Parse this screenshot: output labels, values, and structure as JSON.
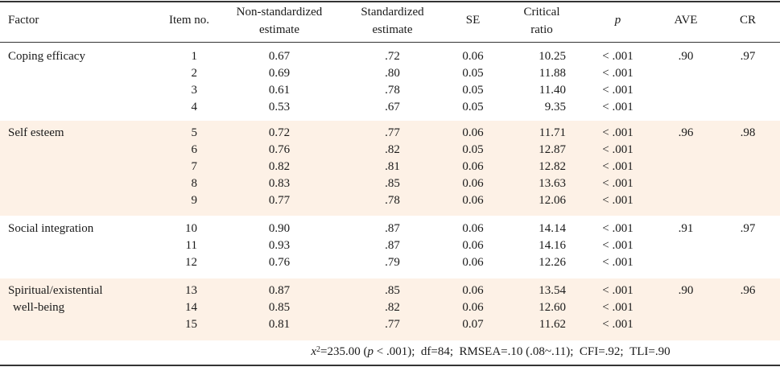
{
  "headers": {
    "factor": "Factor",
    "item_no": "Item no.",
    "nonstd_line1": "Non-standardized",
    "nonstd_line2": "estimate",
    "std_line1": "Standardized",
    "std_line2": "estimate",
    "se": "SE",
    "cr_line1": "Critical",
    "cr_line2": "ratio",
    "p": "p",
    "ave": "AVE",
    "cr": "CR"
  },
  "groups": [
    {
      "factor_lines": [
        "Coping efficacy"
      ],
      "ave": ".90",
      "cr": ".97",
      "rows": [
        {
          "item": "1",
          "nonstd": "0.67",
          "std": ".72",
          "se": "0.06",
          "critical": "10.25",
          "p": "< .001"
        },
        {
          "item": "2",
          "nonstd": "0.69",
          "std": ".80",
          "se": "0.05",
          "critical": "11.88",
          "p": "< .001"
        },
        {
          "item": "3",
          "nonstd": "0.61",
          "std": ".78",
          "se": "0.05",
          "critical": "11.40",
          "p": "< .001"
        },
        {
          "item": "4",
          "nonstd": "0.53",
          "std": ".67",
          "se": "0.05",
          "critical": "9.35",
          "p": "< .001"
        }
      ]
    },
    {
      "factor_lines": [
        "Self esteem"
      ],
      "ave": ".96",
      "cr": ".98",
      "rows": [
        {
          "item": "5",
          "nonstd": "0.72",
          "std": ".77",
          "se": "0.06",
          "critical": "11.71",
          "p": "< .001"
        },
        {
          "item": "6",
          "nonstd": "0.76",
          "std": ".82",
          "se": "0.05",
          "critical": "12.87",
          "p": "< .001"
        },
        {
          "item": "7",
          "nonstd": "0.82",
          "std": ".81",
          "se": "0.06",
          "critical": "12.82",
          "p": "< .001"
        },
        {
          "item": "8",
          "nonstd": "0.83",
          "std": ".85",
          "se": "0.06",
          "critical": "13.63",
          "p": "< .001"
        },
        {
          "item": "9",
          "nonstd": "0.77",
          "std": ".78",
          "se": "0.06",
          "critical": "12.06",
          "p": "< .001"
        }
      ]
    },
    {
      "factor_lines": [
        "Social integration"
      ],
      "ave": ".91",
      "cr": ".97",
      "rows": [
        {
          "item": "10",
          "nonstd": "0.90",
          "std": ".87",
          "se": "0.06",
          "critical": "14.14",
          "p": "< .001"
        },
        {
          "item": "11",
          "nonstd": "0.93",
          "std": ".87",
          "se": "0.06",
          "critical": "14.16",
          "p": "< .001"
        },
        {
          "item": "12",
          "nonstd": "0.76",
          "std": ".79",
          "se": "0.06",
          "critical": "12.26",
          "p": "< .001"
        }
      ]
    },
    {
      "factor_lines": [
        "Spiritual/existential",
        "well-being"
      ],
      "ave": ".90",
      "cr": ".96",
      "rows": [
        {
          "item": "13",
          "nonstd": "0.87",
          "std": ".85",
          "se": "0.06",
          "critical": "13.54",
          "p": "< .001"
        },
        {
          "item": "14",
          "nonstd": "0.85",
          "std": ".82",
          "se": "0.06",
          "critical": "12.60",
          "p": "< .001"
        },
        {
          "item": "15",
          "nonstd": "0.81",
          "std": ".77",
          "se": "0.07",
          "critical": "11.62",
          "p": "< .001"
        }
      ]
    }
  ],
  "footnote": {
    "chi_symbol": "x",
    "chi_sup": "2",
    "chi_value": "=235.00 (",
    "chi_p": "p",
    "chi_p_value": " < .001);",
    "df": "df=84;",
    "rmsea": "RMSEA=.10 (.08~.11);",
    "cfi": "CFI=.92;",
    "tli": "TLI=.90"
  },
  "colors": {
    "band": "#fdf1e6",
    "rule": "#333333"
  }
}
